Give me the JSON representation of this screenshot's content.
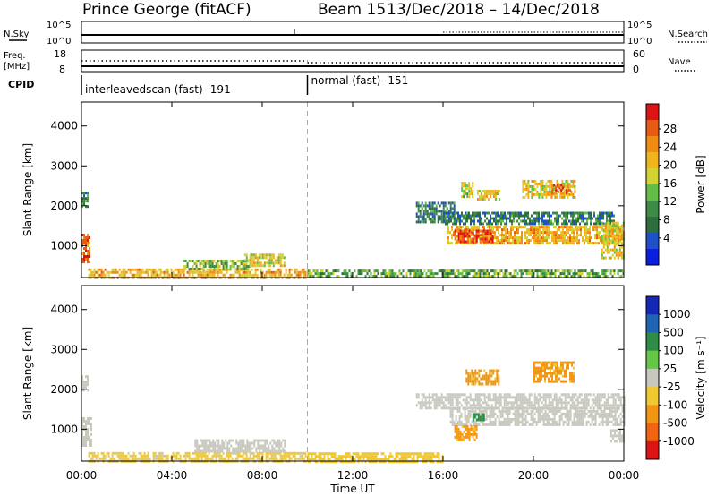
{
  "header": {
    "station": "Prince George (fitACF)",
    "beam": "Beam 15",
    "dates": "13/Dec/2018 – 14/Dec/2018"
  },
  "summary_panels": {
    "nsky_label": "N.Sky",
    "nsky_ticks": [
      "10^5",
      "10^0"
    ],
    "nsearch_label": "N.Search",
    "nsearch_ticks": [
      "10^5",
      "10^0"
    ],
    "freq_label_line1": "Freq.",
    "freq_label_line2": "[MHz]",
    "freq_ticks": [
      "18",
      "8"
    ],
    "nave_label": "Nave",
    "nave_ticks": [
      "60",
      "0"
    ],
    "cpid_label": "CPID",
    "cpid_segments": [
      {
        "label": "interleavedscan (fast) -191",
        "start_h": 0,
        "end_h": 10
      },
      {
        "label": "normal (fast) -151",
        "start_h": 10,
        "end_h": 24
      }
    ]
  },
  "chart_data": [
    {
      "type": "heatmap",
      "title": "",
      "ylabel": "Slant Range [km]",
      "xlabel": "Time UT",
      "ylim": [
        200,
        4600
      ],
      "yticks": [
        "4000",
        "3000",
        "2000",
        "1000"
      ],
      "xticks": [
        "00:00",
        "04:00",
        "08:00",
        "12:00",
        "16:00",
        "20:00",
        "00:00"
      ],
      "xlim_hours": [
        0,
        24
      ],
      "colorbar": {
        "label": "Power [dB]",
        "ticks": [
          "28",
          "24",
          "20",
          "16",
          "12",
          "8",
          "4"
        ],
        "range": [
          0,
          30
        ],
        "colors": [
          "#0a1ee0",
          "#1e50c8",
          "#2d6e3c",
          "#3c8c46",
          "#64be46",
          "#d2d232",
          "#f0b41e",
          "#f08c14",
          "#e65a14",
          "#dc1414"
        ]
      },
      "features": [
        {
          "start_h": 0.0,
          "end_h": 0.35,
          "range_min": 600,
          "range_max": 1300,
          "value": 24
        },
        {
          "start_h": 0.0,
          "end_h": 0.3,
          "range_min": 2000,
          "range_max": 2350,
          "value": 8
        },
        {
          "start_h": 0.3,
          "end_h": 9.9,
          "range_min": 200,
          "range_max": 430,
          "value": 20
        },
        {
          "start_h": 4.5,
          "end_h": 7.5,
          "range_min": 430,
          "range_max": 650,
          "value": 14
        },
        {
          "start_h": 7.2,
          "end_h": 9.0,
          "range_min": 500,
          "range_max": 800,
          "value": 18
        },
        {
          "start_h": 10.0,
          "end_h": 24.0,
          "range_min": 200,
          "range_max": 400,
          "value": 12
        },
        {
          "start_h": 14.8,
          "end_h": 16.5,
          "range_min": 1600,
          "range_max": 2100,
          "value": 8
        },
        {
          "start_h": 16.2,
          "end_h": 24.0,
          "range_min": 1050,
          "range_max": 1500,
          "value": 20
        },
        {
          "start_h": 16.5,
          "end_h": 18.2,
          "range_min": 1100,
          "range_max": 1400,
          "value": 26
        },
        {
          "start_h": 16.8,
          "end_h": 17.3,
          "range_min": 2200,
          "range_max": 2600,
          "value": 16
        },
        {
          "start_h": 17.5,
          "end_h": 18.5,
          "range_min": 2150,
          "range_max": 2400,
          "value": 18
        },
        {
          "start_h": 19.5,
          "end_h": 21.8,
          "range_min": 2200,
          "range_max": 2650,
          "value": 18
        },
        {
          "start_h": 20.8,
          "end_h": 21.6,
          "range_min": 2300,
          "range_max": 2550,
          "value": 24
        },
        {
          "start_h": 16.0,
          "end_h": 23.6,
          "range_min": 1550,
          "range_max": 1850,
          "value": 8
        },
        {
          "start_h": 23.0,
          "end_h": 24.0,
          "range_min": 700,
          "range_max": 1600,
          "value": 18
        }
      ]
    },
    {
      "type": "heatmap",
      "title": "",
      "ylabel": "Slant Range [km]",
      "xlabel": "Time UT",
      "ylim": [
        200,
        4600
      ],
      "yticks": [
        "4000",
        "3000",
        "2000",
        "1000"
      ],
      "xticks": [
        "00:00",
        "04:00",
        "08:00",
        "12:00",
        "16:00",
        "20:00",
        "00:00"
      ],
      "xlim_hours": [
        0,
        24
      ],
      "colorbar": {
        "label": "Velocity [m s⁻¹]",
        "ticks": [
          "1000",
          "500",
          "100",
          "25",
          "-25",
          "-100",
          "-500",
          "-1000"
        ],
        "colors": [
          "#1428b4",
          "#1e64b4",
          "#2d8c46",
          "#64c846",
          "#c8c8be",
          "#f0c832",
          "#f09614",
          "#f06414",
          "#dc1414"
        ]
      },
      "features": [
        {
          "start_h": 0.0,
          "end_h": 0.4,
          "range_min": 600,
          "range_max": 1300,
          "value": 0
        },
        {
          "start_h": 0.0,
          "end_h": 0.3,
          "range_min": 2000,
          "range_max": 2350,
          "value": 0
        },
        {
          "start_h": 0.3,
          "end_h": 9.9,
          "range_min": 200,
          "range_max": 430,
          "value": -80
        },
        {
          "start_h": 5.0,
          "end_h": 9.0,
          "range_min": 430,
          "range_max": 750,
          "value": 0
        },
        {
          "start_h": 10.0,
          "end_h": 16.0,
          "range_min": 200,
          "range_max": 420,
          "value": -90
        },
        {
          "start_h": 14.8,
          "end_h": 24.0,
          "range_min": 1550,
          "range_max": 1900,
          "value": 0
        },
        {
          "start_h": 16.3,
          "end_h": 24.0,
          "range_min": 1100,
          "range_max": 1550,
          "value": 0
        },
        {
          "start_h": 16.5,
          "end_h": 17.5,
          "range_min": 700,
          "range_max": 1100,
          "value": -200
        },
        {
          "start_h": 17.3,
          "end_h": 17.9,
          "range_min": 1200,
          "range_max": 1400,
          "value": 100
        },
        {
          "start_h": 17.0,
          "end_h": 18.5,
          "range_min": 2150,
          "range_max": 2500,
          "value": -300
        },
        {
          "start_h": 20.0,
          "end_h": 21.8,
          "range_min": 2200,
          "range_max": 2700,
          "value": -300
        },
        {
          "start_h": 23.4,
          "end_h": 24.0,
          "range_min": 700,
          "range_max": 1000,
          "value": 0
        }
      ]
    }
  ]
}
